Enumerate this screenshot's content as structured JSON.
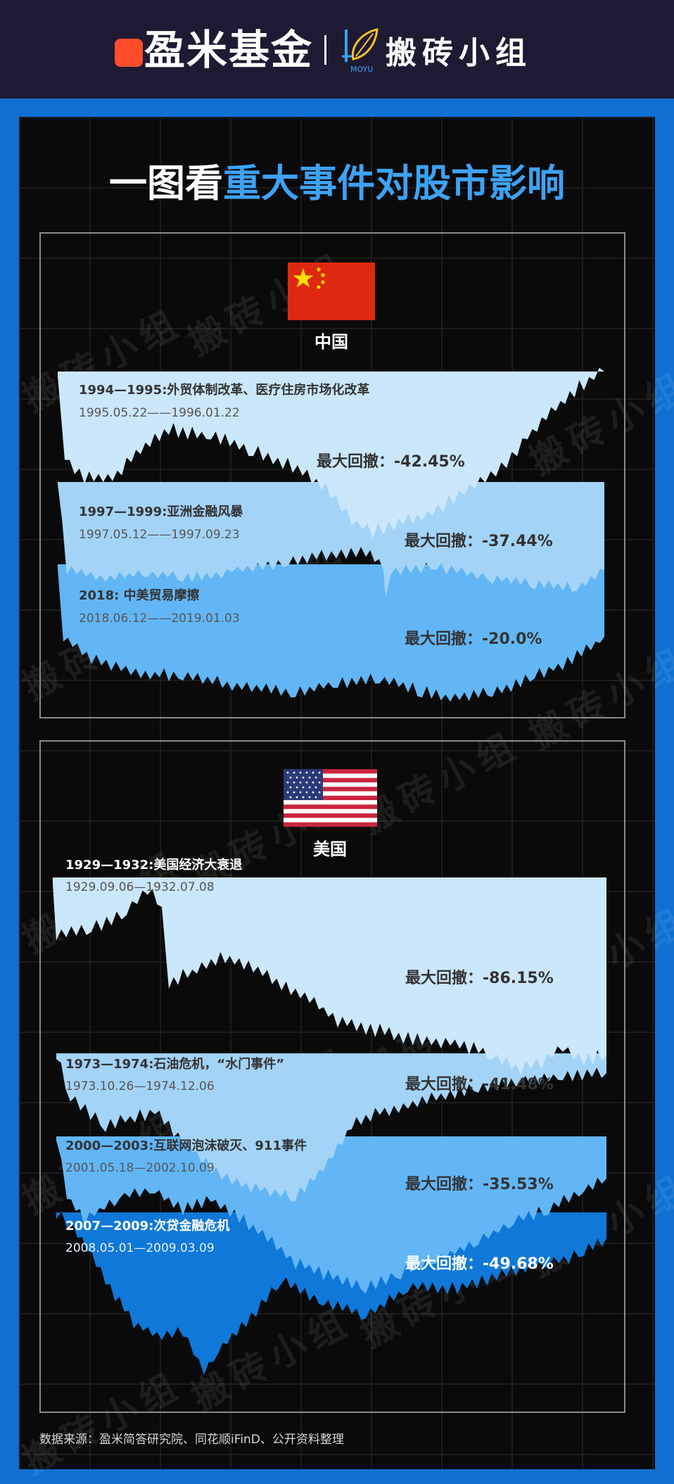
{
  "header": {
    "brand_left": "盈米基金",
    "brand_right": "搬砖小组",
    "moyu_text": "MOYU"
  },
  "title": {
    "white": "一图看",
    "blue": "重大事件对股市影响"
  },
  "watermark": "搬砖小组",
  "china": {
    "label": "中国",
    "flag_icon": "china-flag-icon"
  },
  "usa": {
    "label": "美国",
    "flag_icon": "usa-flag-icon"
  },
  "source": "数据来源：盈米简答研究院、同花顺iFinD、公开资料整理",
  "colors": {
    "light": "#cbe7fb",
    "mid": "#a3d3f7",
    "blue": "#62b6f6",
    "deep": "#0f78d8",
    "accent": "#3ea2f5"
  },
  "chart_data": [
    {
      "type": "area",
      "region": "中国",
      "series": [
        {
          "name": "1994—1995:外贸体制改革、医疗住房市场化改革",
          "period": "1995.05.22——1996.01.22",
          "drawdown_label": "最大回撤：",
          "drawdown": "-42.45%",
          "drawdown_value": -42.45
        },
        {
          "name": "1997—1999:亚洲金融风暴",
          "period": "1997.05.12——1997.09.23",
          "drawdown_label": "最大回撤：",
          "drawdown": "-37.44%",
          "drawdown_value": -37.44
        },
        {
          "name": "2018: 中美贸易摩擦",
          "period": "2018.06.12——2019.01.03",
          "drawdown_label": "最大回撤：",
          "drawdown": "-20.0%",
          "drawdown_value": -20.0
        }
      ]
    },
    {
      "type": "area",
      "region": "美国",
      "series": [
        {
          "name": "1929—1932:美国经济大衰退",
          "period": "1929.09.06—1932.07.08",
          "drawdown_label": "最大回撤：",
          "drawdown": "-86.15%",
          "drawdown_value": -86.15
        },
        {
          "name": "1973—1974:石油危机，“水门事件”",
          "period": "1973.10.26—1974.12.06",
          "drawdown_label": "最大回撤：",
          "drawdown": "-41.48%",
          "drawdown_value": -41.48
        },
        {
          "name": "2000—2003:互联网泡沫破灭、911事件",
          "period": "2001.05.18—2002.10.09",
          "drawdown_label": "最大回撤：",
          "drawdown": "-35.53%",
          "drawdown_value": -35.53
        },
        {
          "name": "2007—2009:次贷金融危机",
          "period": "2008.05.01—2009.03.09",
          "drawdown_label": "最大回撤：",
          "drawdown": "-49.68%",
          "drawdown_value": -49.68
        }
      ]
    }
  ]
}
